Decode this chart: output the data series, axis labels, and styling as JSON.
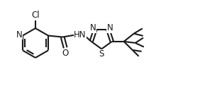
{
  "bg_color": "#ffffff",
  "line_color": "#1a1a1a",
  "line_width": 1.5,
  "font_size": 8.5,
  "figsize": [
    3.13,
    1.22
  ],
  "dpi": 100,
  "xlim": [
    0,
    7.5
  ],
  "ylim": [
    0,
    3.0
  ]
}
